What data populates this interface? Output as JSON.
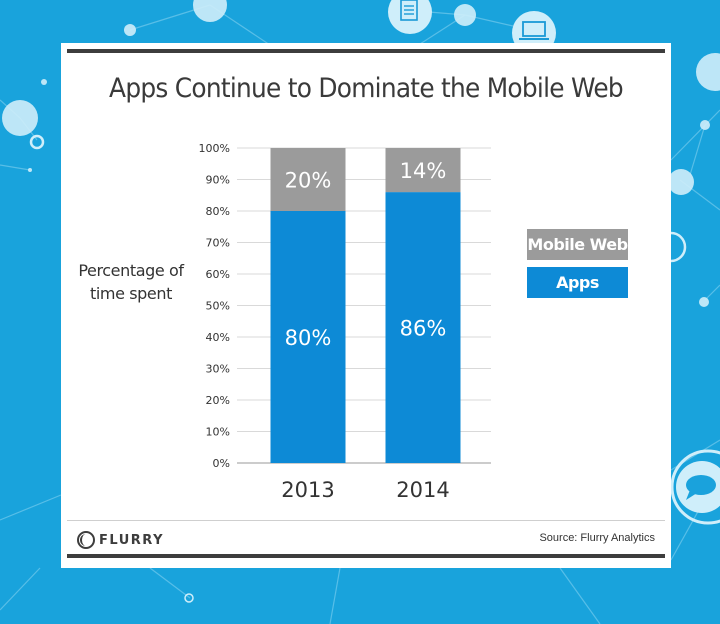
{
  "title": "Apps Continue to Dominate the Mobile Web",
  "ylabel": "Percentage of time spent",
  "source": "Source: Flurry Analytics",
  "logo_text": "FLURRY",
  "icons": [
    "document-icon",
    "laptop-icon",
    "speech-bubble-icon"
  ],
  "colors": {
    "background": "#19a3dc",
    "apps": "#0d8ad6",
    "mobile_web": "#9b9b9b",
    "frame": "#3d3d3d"
  },
  "chart_data": {
    "type": "bar",
    "stacked": true,
    "categories": [
      "2013",
      "2014"
    ],
    "series": [
      {
        "name": "Apps",
        "values": [
          80,
          86
        ],
        "labels": [
          "80%",
          "86%"
        ],
        "color": "#0d8ad6"
      },
      {
        "name": "Mobile Web",
        "values": [
          20,
          14
        ],
        "labels": [
          "20%",
          "14%"
        ],
        "color": "#9b9b9b"
      }
    ],
    "yticks": [
      "0%",
      "10%",
      "20%",
      "30%",
      "40%",
      "50%",
      "60%",
      "70%",
      "80%",
      "90%",
      "100%"
    ],
    "ylim": [
      0,
      100
    ],
    "grid": true,
    "legend": {
      "placement": "right",
      "items": [
        "Mobile Web",
        "Apps"
      ]
    }
  }
}
